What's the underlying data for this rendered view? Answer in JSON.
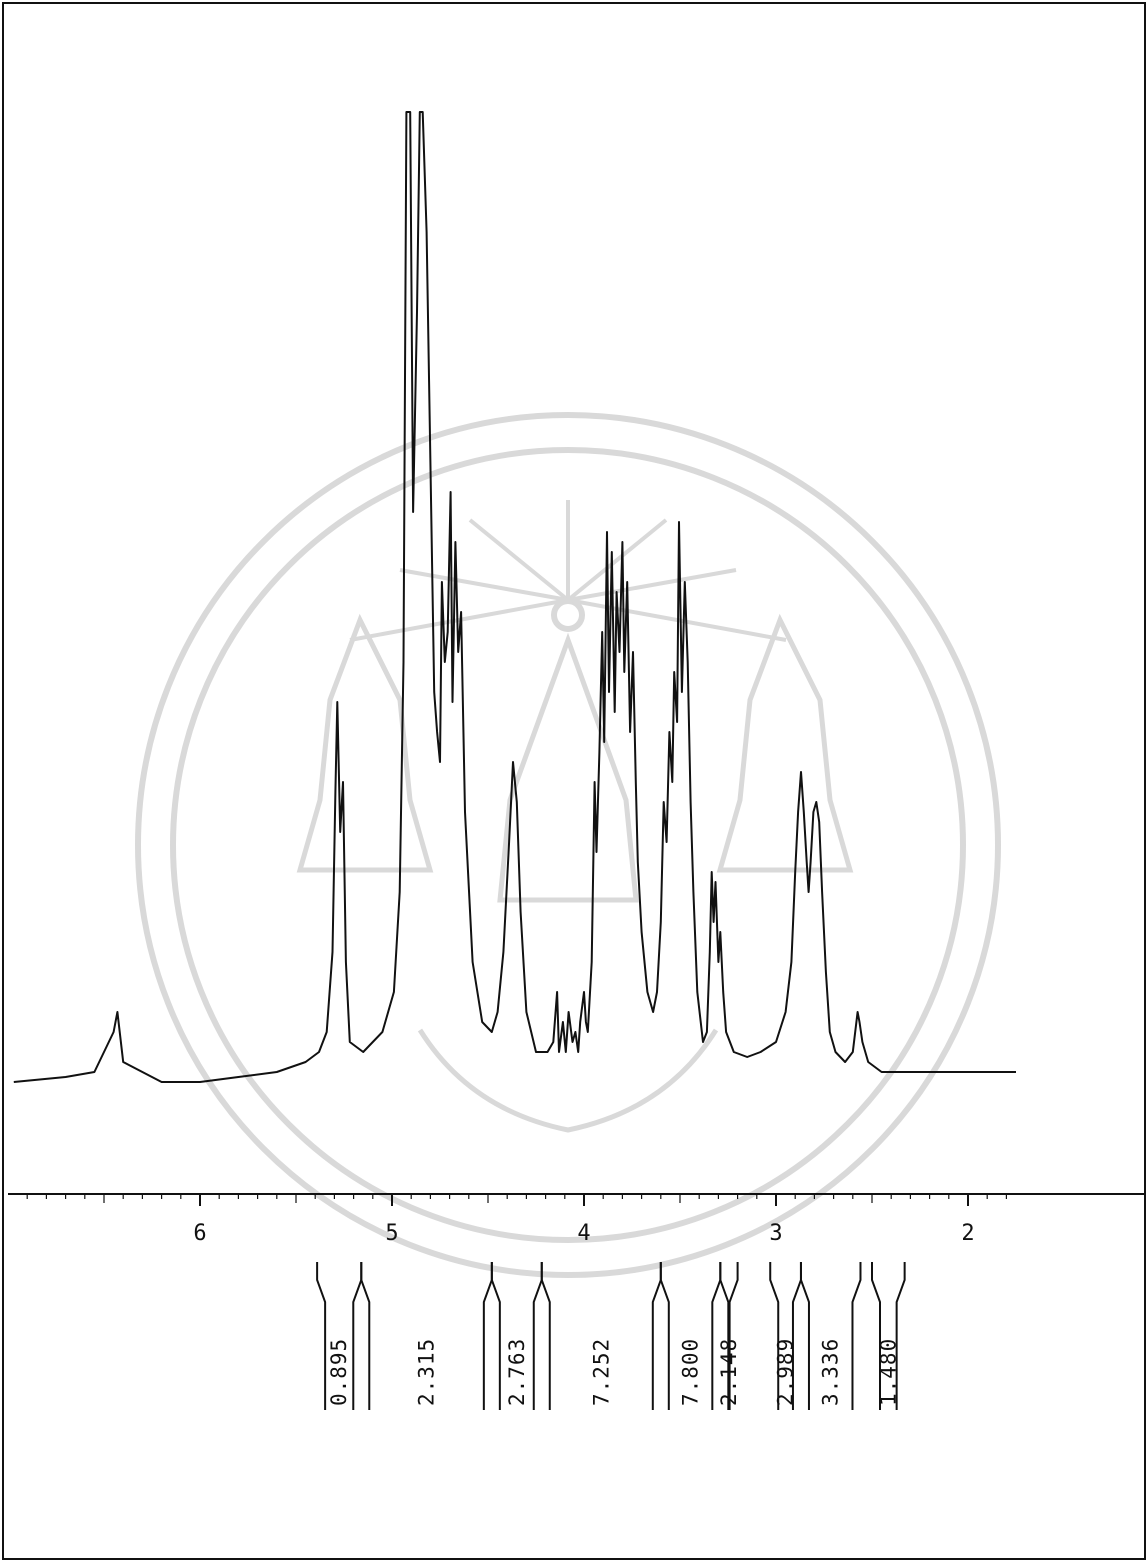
{
  "chart_data": {
    "type": "line",
    "title": "",
    "xlabel": "",
    "ylabel": "",
    "xlim": [
      6.97,
      1.75
    ],
    "x_reversed": true,
    "xticks": [
      "6",
      "5",
      "4",
      "3",
      "2"
    ],
    "xtick_values": [
      6,
      5,
      4,
      3,
      2
    ],
    "grid": false,
    "series": [
      {
        "points": [
          [
            6.97,
            0.03
          ],
          [
            6.7,
            0.035
          ],
          [
            6.55,
            0.04
          ],
          [
            6.45,
            0.08
          ],
          [
            6.43,
            0.1
          ],
          [
            6.4,
            0.05
          ],
          [
            6.2,
            0.03
          ],
          [
            6.0,
            0.03
          ],
          [
            5.8,
            0.035
          ],
          [
            5.6,
            0.04
          ],
          [
            5.45,
            0.05
          ],
          [
            5.38,
            0.06
          ],
          [
            5.34,
            0.08
          ],
          [
            5.31,
            0.16
          ],
          [
            5.295,
            0.32
          ],
          [
            5.285,
            0.41
          ],
          [
            5.27,
            0.28
          ],
          [
            5.255,
            0.33
          ],
          [
            5.24,
            0.15
          ],
          [
            5.22,
            0.07
          ],
          [
            5.15,
            0.06
          ],
          [
            5.05,
            0.08
          ],
          [
            4.99,
            0.12
          ],
          [
            4.96,
            0.22
          ],
          [
            4.94,
            0.45
          ],
          [
            4.925,
            1.0
          ],
          [
            4.905,
            1.0
          ],
          [
            4.89,
            0.6
          ],
          [
            4.87,
            0.8
          ],
          [
            4.855,
            1.0
          ],
          [
            4.84,
            1.0
          ],
          [
            4.82,
            0.88
          ],
          [
            4.8,
            0.65
          ],
          [
            4.78,
            0.42
          ],
          [
            4.765,
            0.38
          ],
          [
            4.75,
            0.35
          ],
          [
            4.74,
            0.53
          ],
          [
            4.725,
            0.45
          ],
          [
            4.71,
            0.48
          ],
          [
            4.695,
            0.62
          ],
          [
            4.685,
            0.41
          ],
          [
            4.67,
            0.57
          ],
          [
            4.655,
            0.46
          ],
          [
            4.64,
            0.5
          ],
          [
            4.62,
            0.3
          ],
          [
            4.58,
            0.15
          ],
          [
            4.53,
            0.09
          ],
          [
            4.48,
            0.08
          ],
          [
            4.45,
            0.1
          ],
          [
            4.42,
            0.16
          ],
          [
            4.39,
            0.27
          ],
          [
            4.37,
            0.35
          ],
          [
            4.35,
            0.31
          ],
          [
            4.33,
            0.2
          ],
          [
            4.3,
            0.1
          ],
          [
            4.25,
            0.06
          ],
          [
            4.19,
            0.06
          ],
          [
            4.16,
            0.07
          ],
          [
            4.14,
            0.12
          ],
          [
            4.13,
            0.06
          ],
          [
            4.11,
            0.09
          ],
          [
            4.095,
            0.06
          ],
          [
            4.08,
            0.1
          ],
          [
            4.06,
            0.07
          ],
          [
            4.045,
            0.08
          ],
          [
            4.03,
            0.06
          ],
          [
            4.02,
            0.09
          ],
          [
            4.0,
            0.12
          ],
          [
            3.99,
            0.09
          ],
          [
            3.98,
            0.08
          ],
          [
            3.96,
            0.15
          ],
          [
            3.945,
            0.33
          ],
          [
            3.935,
            0.26
          ],
          [
            3.92,
            0.36
          ],
          [
            3.905,
            0.48
          ],
          [
            3.895,
            0.37
          ],
          [
            3.88,
            0.58
          ],
          [
            3.87,
            0.42
          ],
          [
            3.855,
            0.56
          ],
          [
            3.84,
            0.4
          ],
          [
            3.83,
            0.52
          ],
          [
            3.815,
            0.46
          ],
          [
            3.8,
            0.57
          ],
          [
            3.79,
            0.44
          ],
          [
            3.775,
            0.53
          ],
          [
            3.76,
            0.38
          ],
          [
            3.745,
            0.46
          ],
          [
            3.73,
            0.33
          ],
          [
            3.72,
            0.25
          ],
          [
            3.7,
            0.18
          ],
          [
            3.67,
            0.12
          ],
          [
            3.64,
            0.1
          ],
          [
            3.62,
            0.12
          ],
          [
            3.6,
            0.19
          ],
          [
            3.585,
            0.31
          ],
          [
            3.57,
            0.27
          ],
          [
            3.555,
            0.38
          ],
          [
            3.54,
            0.33
          ],
          [
            3.53,
            0.44
          ],
          [
            3.515,
            0.39
          ],
          [
            3.505,
            0.59
          ],
          [
            3.49,
            0.42
          ],
          [
            3.475,
            0.53
          ],
          [
            3.46,
            0.45
          ],
          [
            3.445,
            0.31
          ],
          [
            3.43,
            0.22
          ],
          [
            3.41,
            0.12
          ],
          [
            3.38,
            0.07
          ],
          [
            3.36,
            0.08
          ],
          [
            3.345,
            0.16
          ],
          [
            3.335,
            0.24
          ],
          [
            3.325,
            0.19
          ],
          [
            3.315,
            0.23
          ],
          [
            3.3,
            0.15
          ],
          [
            3.29,
            0.18
          ],
          [
            3.275,
            0.12
          ],
          [
            3.26,
            0.08
          ],
          [
            3.22,
            0.06
          ],
          [
            3.15,
            0.055
          ],
          [
            3.08,
            0.06
          ],
          [
            3.0,
            0.07
          ],
          [
            2.95,
            0.1
          ],
          [
            2.92,
            0.15
          ],
          [
            2.9,
            0.24
          ],
          [
            2.885,
            0.3
          ],
          [
            2.87,
            0.34
          ],
          [
            2.855,
            0.3
          ],
          [
            2.84,
            0.25
          ],
          [
            2.83,
            0.22
          ],
          [
            2.82,
            0.25
          ],
          [
            2.805,
            0.3
          ],
          [
            2.79,
            0.31
          ],
          [
            2.775,
            0.29
          ],
          [
            2.76,
            0.22
          ],
          [
            2.74,
            0.14
          ],
          [
            2.72,
            0.08
          ],
          [
            2.69,
            0.06
          ],
          [
            2.64,
            0.05
          ],
          [
            2.6,
            0.06
          ],
          [
            2.575,
            0.1
          ],
          [
            2.565,
            0.09
          ],
          [
            2.55,
            0.07
          ],
          [
            2.52,
            0.05
          ],
          [
            2.45,
            0.04
          ],
          [
            2.35,
            0.04
          ],
          [
            2.2,
            0.04
          ],
          [
            2.05,
            0.04
          ],
          [
            1.9,
            0.04
          ],
          [
            1.75,
            0.04
          ]
        ]
      }
    ],
    "integrals": [
      {
        "from": 5.39,
        "to": 5.16,
        "value": "0.895"
      },
      {
        "from": 5.16,
        "to": 4.48,
        "value": "2.315"
      },
      {
        "from": 4.48,
        "to": 4.22,
        "value": "2.763"
      },
      {
        "from": 4.22,
        "to": 3.6,
        "value": "7.252"
      },
      {
        "from": 3.6,
        "to": 3.29,
        "value": "7.800"
      },
      {
        "from": 3.29,
        "to": 3.2,
        "value": "2.148"
      },
      {
        "from": 3.03,
        "to": 2.87,
        "value": "2.989"
      },
      {
        "from": 2.87,
        "to": 2.56,
        "value": "3.336"
      },
      {
        "from": 2.5,
        "to": 2.33,
        "value": "1.480"
      }
    ]
  }
}
